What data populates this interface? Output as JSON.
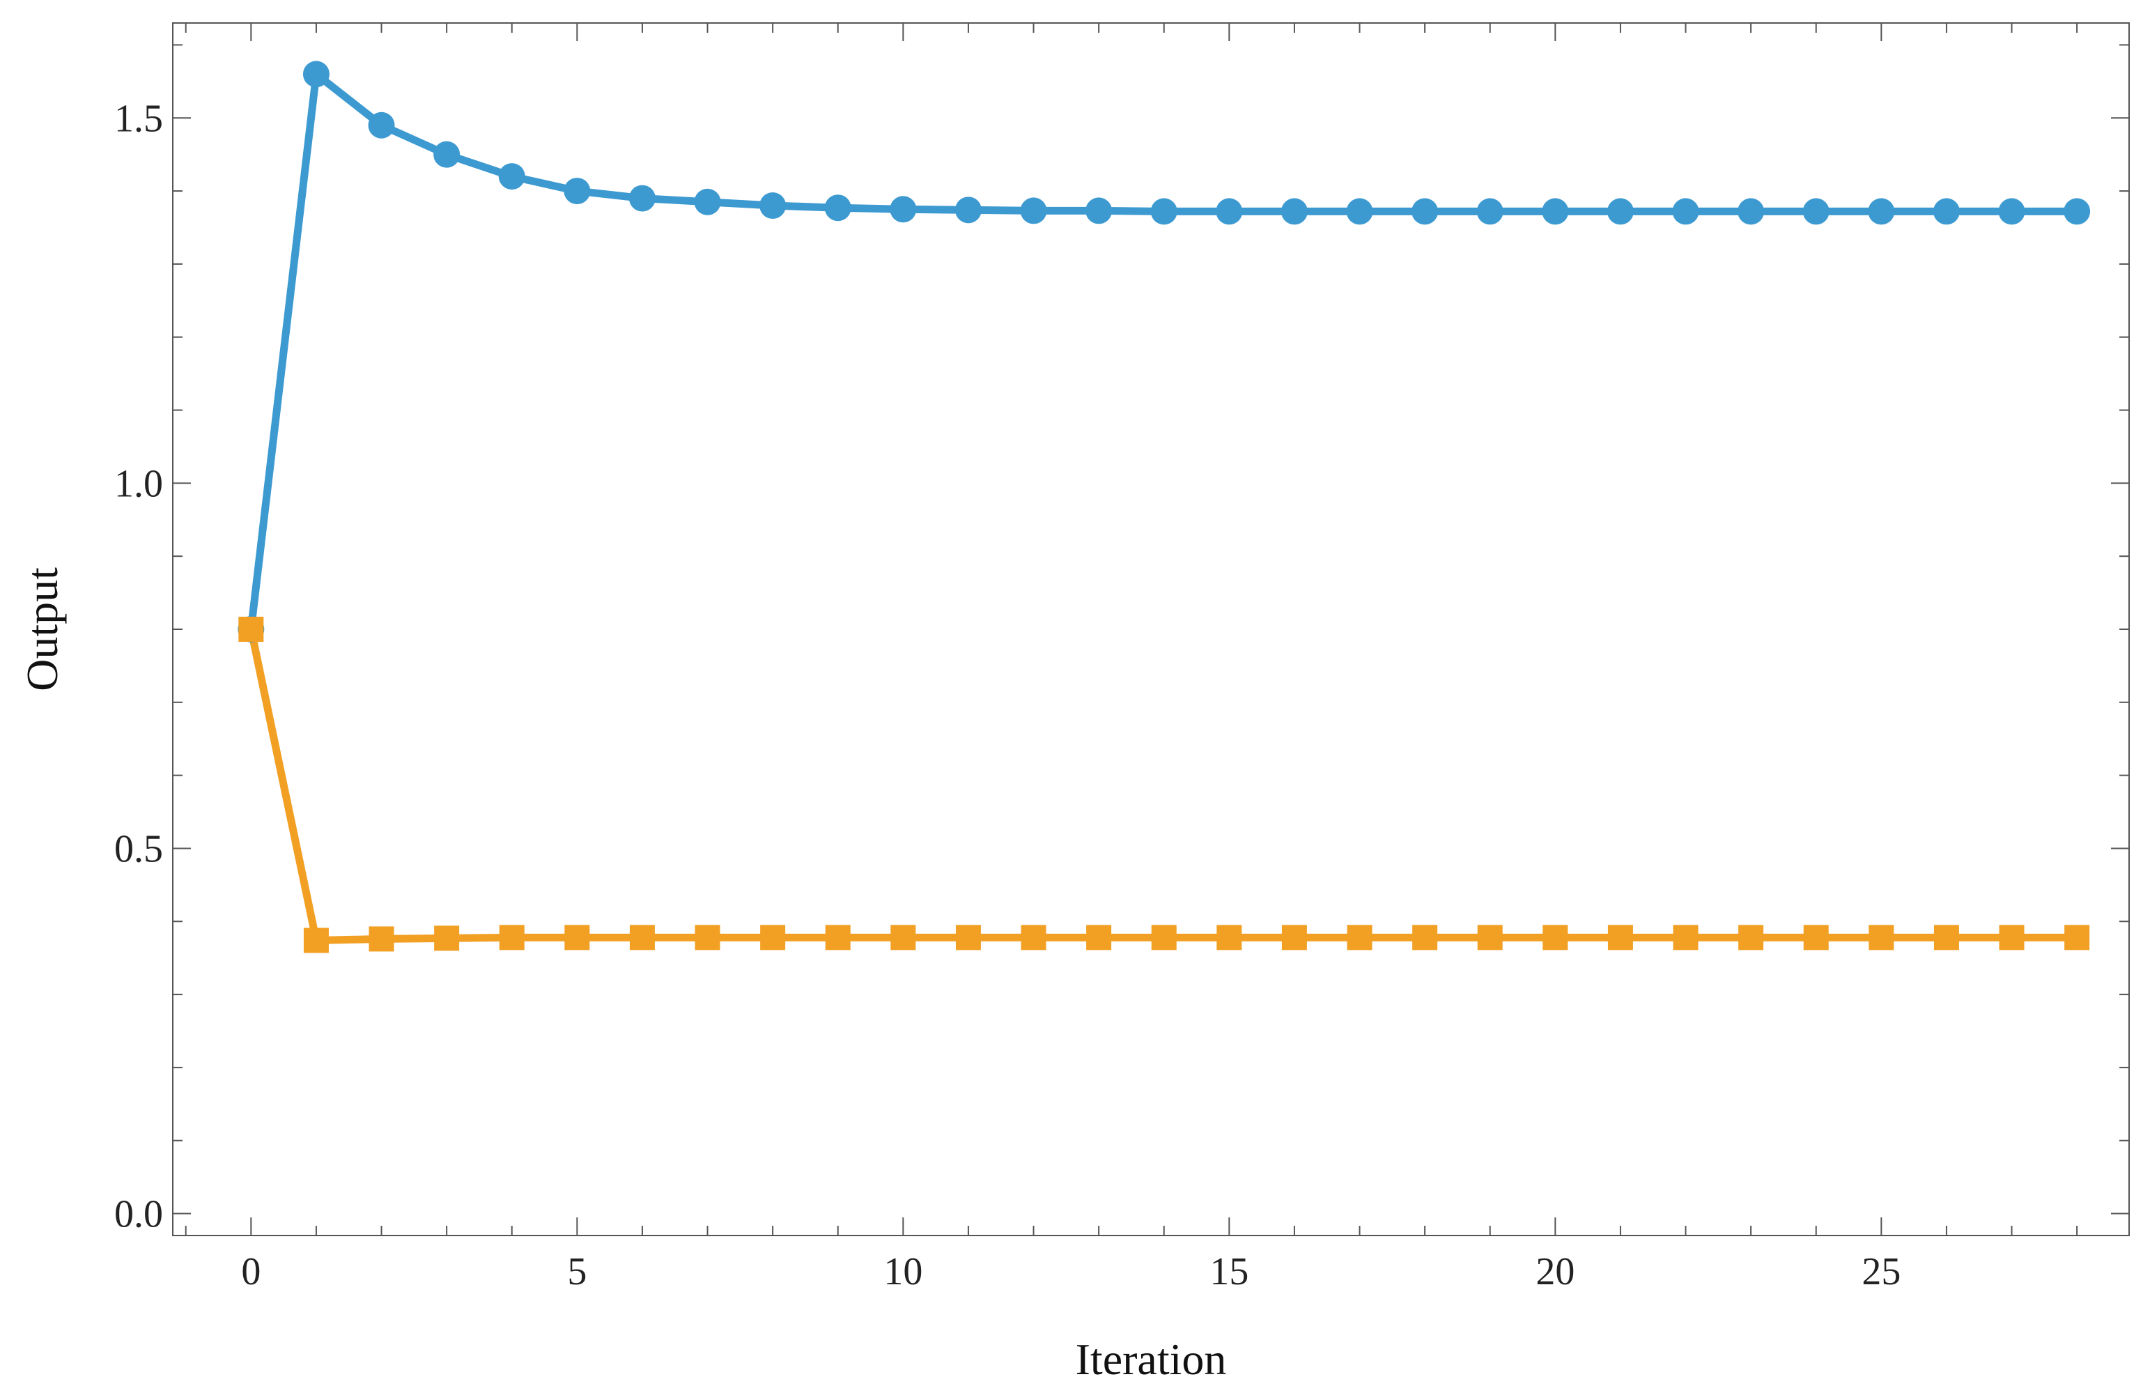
{
  "chart_data": {
    "type": "line",
    "title": "",
    "xlabel": "Iteration",
    "ylabel": "Output",
    "xlim": [
      -1.2,
      28.8
    ],
    "ylim": [
      -0.03,
      1.63
    ],
    "xticks": [
      0,
      5,
      10,
      15,
      20,
      25
    ],
    "yticks": [
      0.0,
      0.5,
      1.0,
      1.5
    ],
    "xtick_labels": [
      "0",
      "5",
      "10",
      "15",
      "20",
      "25"
    ],
    "ytick_labels": [
      "0.0",
      "0.5",
      "1.0",
      "1.5"
    ],
    "grid": false,
    "legend": "none",
    "x": [
      0,
      1,
      2,
      3,
      4,
      5,
      6,
      7,
      8,
      9,
      10,
      11,
      12,
      13,
      14,
      15,
      16,
      17,
      18,
      19,
      20,
      21,
      22,
      23,
      24,
      25,
      26,
      27,
      28
    ],
    "series": [
      {
        "marker": "circle",
        "color": "#3d9ad1",
        "values": [
          0.8,
          1.56,
          1.49,
          1.45,
          1.42,
          1.4,
          1.39,
          1.385,
          1.38,
          1.377,
          1.375,
          1.374,
          1.373,
          1.373,
          1.372,
          1.372,
          1.372,
          1.372,
          1.372,
          1.372,
          1.372,
          1.372,
          1.372,
          1.372,
          1.372,
          1.372,
          1.372,
          1.372,
          1.372
        ]
      },
      {
        "marker": "square",
        "color": "#f2a024",
        "values": [
          0.8,
          0.374,
          0.376,
          0.377,
          0.378,
          0.378,
          0.378,
          0.378,
          0.378,
          0.378,
          0.378,
          0.378,
          0.378,
          0.378,
          0.378,
          0.378,
          0.378,
          0.378,
          0.378,
          0.378,
          0.378,
          0.378,
          0.378,
          0.378,
          0.378,
          0.378,
          0.378,
          0.378,
          0.378
        ]
      }
    ]
  }
}
